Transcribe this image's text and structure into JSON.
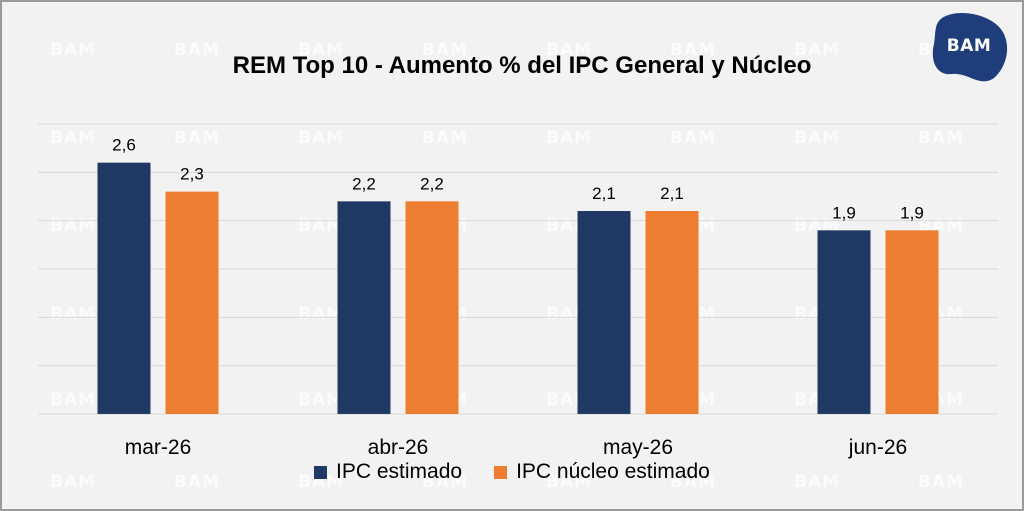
{
  "brand": {
    "logo_text": "BAM",
    "watermark_text": "BAM"
  },
  "colors": {
    "series_general": "#203864",
    "series_nucleo": "#ED7D31",
    "background": "#f2f2f2",
    "logo": "#1f3d7a"
  },
  "chart_data": {
    "type": "bar",
    "title": "REM Top 10 - Aumento % del IPC General y Núcleo",
    "categories": [
      "mar-26",
      "abr-26",
      "may-26",
      "jun-26"
    ],
    "series": [
      {
        "name": "IPC estimado",
        "values": [
          2.6,
          2.2,
          2.1,
          1.9
        ],
        "labels": [
          "2,6",
          "2,2",
          "2,1",
          "1,9"
        ]
      },
      {
        "name": "IPC núcleo estimado",
        "values": [
          2.3,
          2.2,
          2.1,
          1.9
        ],
        "labels": [
          "2,3",
          "2,2",
          "2,1",
          "1,9"
        ]
      }
    ],
    "xlabel": "",
    "ylabel": "",
    "ylim": [
      0,
      3
    ],
    "grid": true,
    "legend": "bottom"
  }
}
